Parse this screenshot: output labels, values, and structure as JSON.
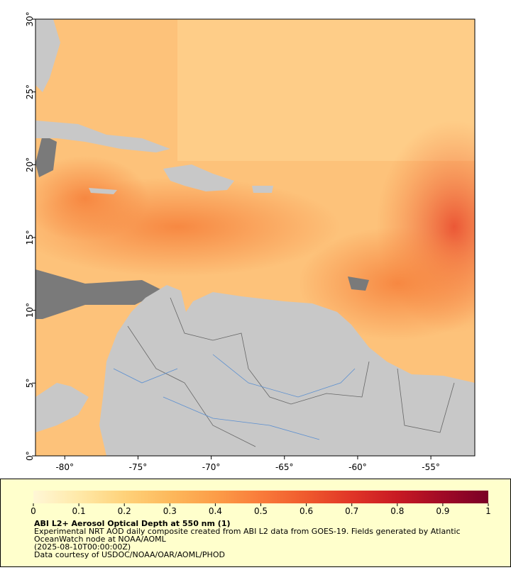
{
  "map": {
    "lonlim": [
      -82,
      -52
    ],
    "latlim": [
      0,
      30
    ],
    "lonticks": [
      {
        "value": -80,
        "label": "-80°"
      },
      {
        "value": -75,
        "label": "-75°"
      },
      {
        "value": -70,
        "label": "-70°"
      },
      {
        "value": -65,
        "label": "-65°"
      },
      {
        "value": -60,
        "label": "-60°"
      },
      {
        "value": -55,
        "label": "-55°"
      }
    ],
    "latticks": [
      {
        "value": 0,
        "label": "0°"
      },
      {
        "value": 5,
        "label": "5°"
      },
      {
        "value": 10,
        "label": "10°"
      },
      {
        "value": 15,
        "label": "15°"
      },
      {
        "value": 20,
        "label": "20°"
      },
      {
        "value": 25,
        "label": "25°"
      },
      {
        "value": 30,
        "label": "30°"
      }
    ]
  },
  "colorbar": {
    "lim": [
      0,
      1
    ],
    "ticks": [
      0,
      0.1,
      0.2,
      0.3,
      0.4,
      0.5,
      0.6,
      0.7,
      0.8,
      0.9,
      1
    ],
    "colors": [
      "#fff7d6",
      "#ffe9a8",
      "#fed27a",
      "#fdb95c",
      "#fc9d48",
      "#f97b3a",
      "#ef5a2d",
      "#e03527",
      "#c81a23",
      "#a00a26",
      "#7a0026"
    ]
  },
  "caption": {
    "title": "ABI L2+ Aerosol Optical Depth at 550 nm (1)",
    "lines": [
      "Experimental NRT AOD daily composite created from ABI L2 data from GOES-19. Fields generated by Atlantic",
      "OceanWatch node at NOAA/AOML",
      "(2025-08-10T00:00:00Z)",
      "Data courtesy of USDOC/NOAA/OAR/AOML/PHOD"
    ]
  }
}
